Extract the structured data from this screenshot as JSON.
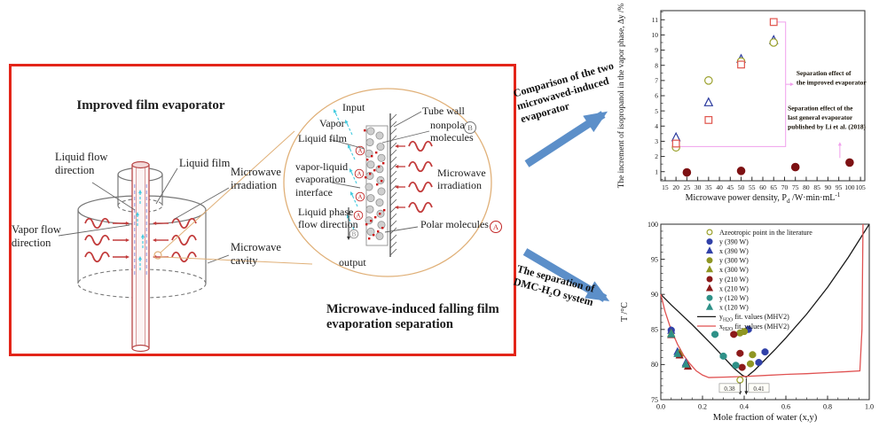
{
  "figure": {
    "background": "#ffffff",
    "accent_red": "#e32519",
    "arrow_blue": "#5c8fc9",
    "magnifier_orange": "#e0b078",
    "annotation_pink": "#f0a0ec"
  },
  "left_panel": {
    "title": "Improved film evaporator",
    "caption": "Microwave-induced falling film\nevaporation separation",
    "labels": {
      "liquid_flow": "Liquid flow\ndirection",
      "liquid_film": "Liquid film",
      "microwave_irradiation": "Microwave\nirradiation",
      "vapor_flow": "Vapor flow\ndirection",
      "microwave_cavity": "Microwave\ncavity"
    },
    "inset": {
      "input": "Input",
      "vapor": "Vapor",
      "liquid_film": "Liquid film",
      "tube_wall": "Tube wall",
      "nonpolar": "nonpolar\nmolecules",
      "nonpolar_symbol": "B",
      "interface": "vapor-liquid\nevaporation\ninterface",
      "microwave_irradiation": "Microwave\nirradiation",
      "liquid_phase": "Liquid phase\nflow direction",
      "liquid_phase_symbol": "B",
      "polar": "Polar molecules",
      "polar_symbol": "A",
      "output": "output"
    }
  },
  "arrows": {
    "top_label": "Comparison of the two\nmicrowaved-induced\nevaporator",
    "bottom_label": "The separation of\nDMC-H₂O system"
  },
  "chart_data": [
    {
      "type": "scatter",
      "xlabel_parts": [
        {
          "t": "Microwave power density, P"
        },
        {
          "t": "d",
          "s": "sub"
        },
        {
          "t": " /W·min·mL"
        },
        {
          "t": "-1",
          "s": "sup"
        }
      ],
      "ylabel": "The increment of isopropanol in the vapor phase, Δy /%",
      "xlim": [
        13,
        107
      ],
      "ylim": [
        0.4,
        11.6
      ],
      "xticks": [
        15,
        20,
        25,
        30,
        35,
        40,
        45,
        50,
        55,
        60,
        65,
        70,
        75,
        80,
        85,
        90,
        95,
        100,
        105
      ],
      "yticks": [
        1,
        2,
        3,
        4,
        5,
        6,
        7,
        8,
        9,
        10,
        11
      ],
      "yminor_step": 0.5,
      "grid": false,
      "series": [
        {
          "name": "improved-evaporator-triangles",
          "marker": "triangle",
          "open": true,
          "color": "#2b3a9e",
          "x": [
            20,
            35,
            50,
            65
          ],
          "y": [
            3.25,
            5.55,
            8.4,
            9.65
          ]
        },
        {
          "name": "improved-evaporator-circles",
          "marker": "circle",
          "open": true,
          "color": "#9aa02a",
          "x": [
            20,
            35,
            50,
            65
          ],
          "y": [
            2.6,
            7.0,
            8.25,
            9.5
          ]
        },
        {
          "name": "improved-evaporator-squares",
          "marker": "square",
          "open": true,
          "color": "#e0544c",
          "x": [
            20,
            35,
            50,
            65
          ],
          "y": [
            2.85,
            4.4,
            8.05,
            10.85
          ]
        },
        {
          "name": "general-evaporator-li-2018",
          "marker": "circle",
          "open": false,
          "color": "#7d1113",
          "x": [
            25,
            50,
            75,
            100
          ],
          "y": [
            0.95,
            1.05,
            1.3,
            1.6
          ]
        }
      ],
      "annotations": [
        {
          "type": "polyline",
          "color": "#f0a0ec",
          "points": [
            [
              66.5,
              10.85
            ],
            [
              70.5,
              10.85
            ],
            [
              70.5,
              2.65
            ],
            [
              21.5,
              2.65
            ]
          ]
        },
        {
          "type": "arrow",
          "color": "#f0a0ec",
          "from": [
            70.5,
            6.75
          ],
          "to": [
            74.3,
            6.75
          ]
        },
        {
          "type": "arrow",
          "color": "#f0a0ec",
          "from": [
            95.5,
            1.9
          ],
          "to": [
            95.5,
            2.95
          ]
        },
        {
          "type": "text",
          "x": 75.5,
          "y": 7.35,
          "text": "Separation effect  of\nthe improved evaporator",
          "bold": true,
          "size": 7.4
        },
        {
          "type": "text",
          "x": 71.5,
          "y": 5.05,
          "text": "Separation effect of the\nlast general evaporator\npublished by Li et al. (2018)",
          "bold": true,
          "size": 7.4
        }
      ]
    },
    {
      "type": "scatter-line",
      "xlabel": "Mole fraction of water (x,y)",
      "ylabel": "T /°C",
      "xlim": [
        0,
        1
      ],
      "ylim": [
        75,
        100
      ],
      "xticks": [
        0,
        0.2,
        0.4,
        0.6,
        0.8,
        1
      ],
      "xtick_labels": [
        "0.0",
        "0.2",
        "0.4",
        "0.6",
        "0.8",
        "1.0"
      ],
      "yticks": [
        75,
        80,
        85,
        90,
        95,
        100
      ],
      "xminor_step": 0.05,
      "yminor_step": 1,
      "grid": false,
      "lines": [
        {
          "label_parts": [
            {
              "t": "y"
            },
            {
              "t": "H2O",
              "s": "sub"
            },
            {
              "t": " fit. values (MHV2)"
            }
          ],
          "color": "#1a1a1a",
          "x": [
            0,
            0.05,
            0.1,
            0.15,
            0.2,
            0.25,
            0.3,
            0.35,
            0.39,
            0.41,
            0.45,
            0.5,
            0.55,
            0.6,
            0.7,
            0.8,
            0.9,
            1
          ],
          "y": [
            90,
            88.5,
            87.1,
            85.7,
            84.2,
            82.7,
            81.1,
            79.5,
            78.5,
            78.2,
            79.2,
            80.7,
            82.2,
            83.8,
            87.2,
            91,
            95.3,
            100
          ]
        },
        {
          "label_parts": [
            {
              "t": "x"
            },
            {
              "t": "H2O",
              "s": "sub"
            },
            {
              "t": " fit. values (MHV2)"
            }
          ],
          "color": "#e05252",
          "x": [
            0,
            0.02,
            0.05,
            0.08,
            0.11,
            0.14,
            0.17,
            0.2,
            0.23,
            0.3,
            0.4,
            0.5,
            0.6,
            0.7,
            0.8,
            0.9,
            0.955,
            0.965,
            0.97
          ],
          "y": [
            90,
            87.6,
            84.9,
            82.9,
            81.3,
            80.1,
            79.1,
            78.5,
            78.15,
            78.2,
            78.3,
            78.45,
            78.6,
            78.7,
            78.85,
            79,
            79.1,
            85,
            100
          ]
        }
      ],
      "series": [
        {
          "label": "Azeotropic point in the literature",
          "marker": "circle",
          "open": true,
          "color": "#9aa02a",
          "x": [
            0.38
          ],
          "y": [
            77.8
          ]
        },
        {
          "label": "y (390 W)",
          "marker": "circle",
          "open": false,
          "color": "#3141a8",
          "xerr": 0.015,
          "x": [
            0.05,
            0.42,
            0.47,
            0.5
          ],
          "y": [
            84.9,
            85,
            80.3,
            81.8
          ]
        },
        {
          "label": "x (390 W)",
          "marker": "triangle",
          "open": false,
          "color": "#3141a8",
          "x": [
            0.05,
            0.08,
            0.12
          ],
          "y": [
            84.8,
            81.8,
            80.2
          ]
        },
        {
          "label": "y (300 W)",
          "marker": "circle",
          "open": false,
          "color": "#8f9623",
          "xerr": 0.015,
          "x": [
            0.38,
            0.4,
            0.43,
            0.44
          ],
          "y": [
            84.5,
            84.7,
            80.1,
            81.4
          ]
        },
        {
          "label": "x (300 W)",
          "marker": "triangle",
          "open": false,
          "color": "#8f9623",
          "x": [
            0.05,
            0.09,
            0.12
          ],
          "y": [
            84.4,
            81.6,
            80
          ]
        },
        {
          "label": "y (210 W)",
          "marker": "circle",
          "open": false,
          "color": "#8c1a1a",
          "xerr": 0.015,
          "x": [
            0.35,
            0.38,
            0.39
          ],
          "y": [
            84.3,
            81.6,
            79.6
          ]
        },
        {
          "label": "x (210 W)",
          "marker": "triangle",
          "open": false,
          "color": "#8c1a1a",
          "x": [
            0.05,
            0.09,
            0.13
          ],
          "y": [
            84.2,
            81.3,
            79.7
          ]
        },
        {
          "label": "y (120 W)",
          "marker": "circle",
          "open": false,
          "color": "#2e9188",
          "xerr": 0.015,
          "x": [
            0.26,
            0.3,
            0.36
          ],
          "y": [
            84.3,
            81.2,
            79.9
          ]
        },
        {
          "label": "x (120 W)",
          "marker": "triangle",
          "open": false,
          "color": "#2e9188",
          "x": [
            0.05,
            0.08,
            0.12
          ],
          "y": [
            84.3,
            81.5,
            80
          ]
        }
      ],
      "annotations": [
        {
          "type": "arrow",
          "color": "#222222",
          "from": [
            0.38,
            77.45
          ],
          "to": [
            0.38,
            75.7
          ]
        },
        {
          "type": "arrow",
          "color": "#222222",
          "from": [
            0.41,
            78.05
          ],
          "to": [
            0.41,
            75.7
          ]
        },
        {
          "type": "boxtext",
          "x": 0.33,
          "y": 76.6,
          "text": "0.38"
        },
        {
          "type": "boxtext",
          "x": 0.47,
          "y": 76.6,
          "text": "0.41"
        }
      ]
    }
  ]
}
